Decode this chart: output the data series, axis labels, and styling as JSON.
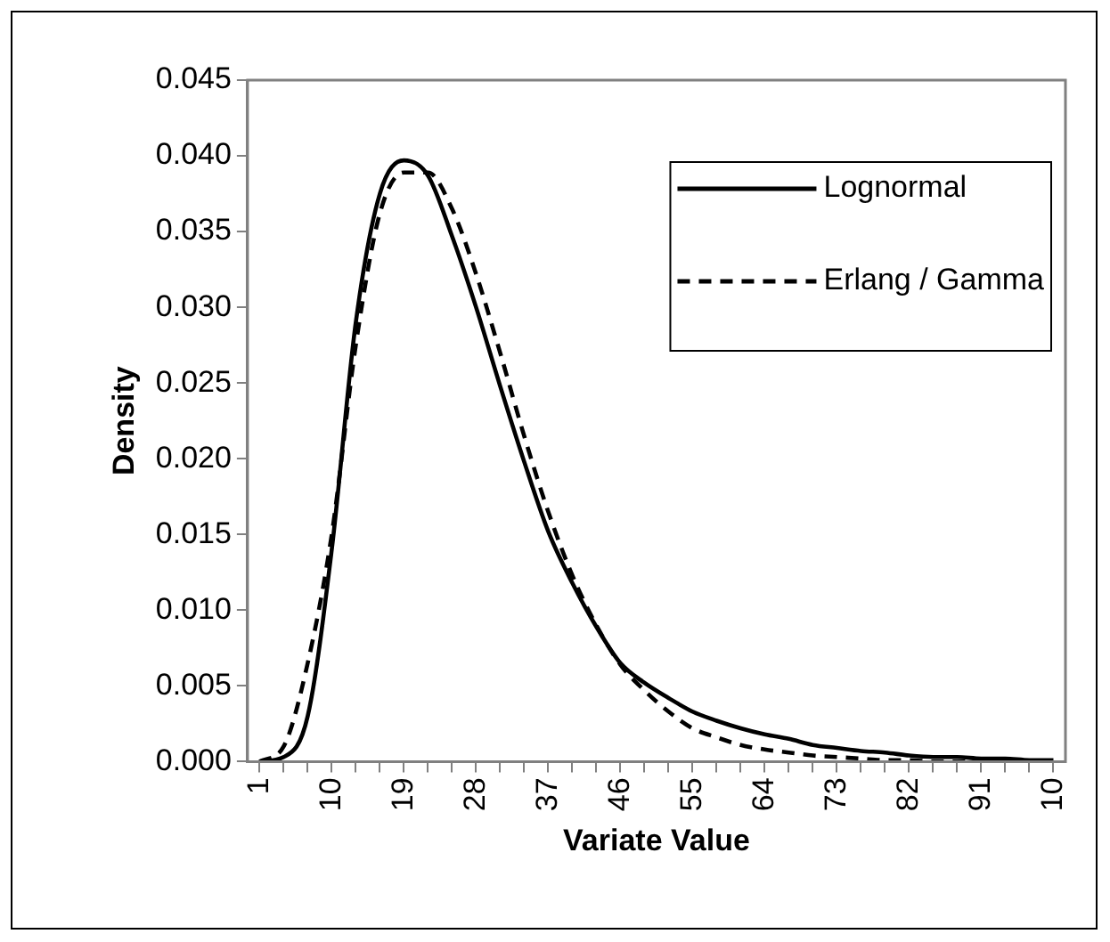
{
  "chart_data": {
    "type": "line",
    "xlabel": "Variate Value",
    "ylabel": "Density",
    "categories": [
      "1",
      null,
      null,
      "10",
      null,
      null,
      "19",
      null,
      null,
      "28",
      null,
      null,
      "37",
      null,
      null,
      "46",
      null,
      null,
      "55",
      null,
      null,
      "64",
      null,
      null,
      "73",
      null,
      null,
      "82",
      null,
      null,
      "91",
      null,
      null,
      "10"
    ],
    "ylim": [
      0,
      0.045
    ],
    "yticks": [
      {
        "value": 0,
        "label": "0.000"
      },
      {
        "value": 0.005,
        "label": "0.005"
      },
      {
        "value": 0.01,
        "label": "0.010"
      },
      {
        "value": 0.015,
        "label": "0.015"
      },
      {
        "value": 0.02,
        "label": "0.020"
      },
      {
        "value": 0.025,
        "label": "0.025"
      },
      {
        "value": 0.03,
        "label": "0.030"
      },
      {
        "value": 0.035,
        "label": "0.035"
      },
      {
        "value": 0.04,
        "label": "0.040"
      },
      {
        "value": 0.045,
        "label": "0.045"
      }
    ],
    "grid": false,
    "legend": "top right",
    "marker": "none",
    "series": [
      {
        "name": "Lognormal",
        "color": "#000000",
        "line_style": "solid",
        "values": [
          0,
          0.0003,
          0.003,
          0.014,
          0.029,
          0.0375,
          0.0397,
          0.0387,
          0.0347,
          0.03,
          0.0248,
          0.0198,
          0.0152,
          0.0118,
          0.0089,
          0.0065,
          0.0052,
          0.0042,
          0.0033,
          0.0027,
          0.0022,
          0.0018,
          0.0015,
          0.0011,
          0.0009,
          0.0007,
          0.0006,
          0.0004,
          0.0003,
          0.0003,
          0.0002,
          0.0002,
          0.0001,
          0.0001
        ]
      },
      {
        "name": "Erlang / Gamma",
        "color": "#000000",
        "line_style": "dashed",
        "values": [
          0,
          0.001,
          0.0065,
          0.015,
          0.0275,
          0.0362,
          0.0389,
          0.0389,
          0.0365,
          0.0322,
          0.027,
          0.0215,
          0.0165,
          0.0123,
          0.009,
          0.0064,
          0.0047,
          0.0033,
          0.0022,
          0.0016,
          0.0011,
          0.0008,
          0.0006,
          0.0004,
          0.0003,
          0.0002,
          0.0001,
          0.0001,
          0,
          0,
          0,
          0,
          0,
          0
        ]
      }
    ]
  }
}
